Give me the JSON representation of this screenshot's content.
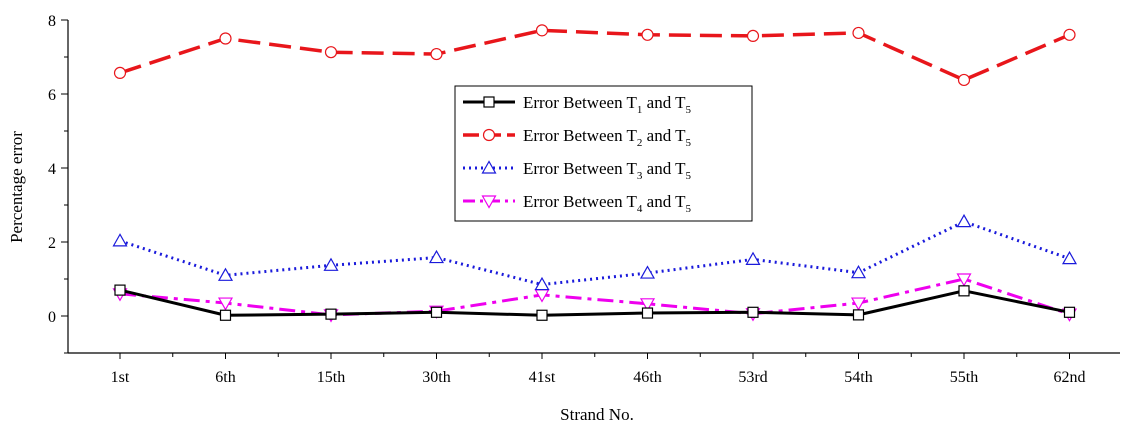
{
  "chart_data": {
    "type": "line",
    "xlabel": "Strand No.",
    "ylabel": "Percentage error",
    "categories": [
      "1st",
      "6th",
      "15th",
      "30th",
      "41st",
      "46th",
      "53rd",
      "54th",
      "55th",
      "62nd"
    ],
    "ylim": [
      -1,
      8
    ],
    "yticks": [
      0,
      2,
      4,
      6,
      8
    ],
    "grid": false,
    "legend_position": "center",
    "series": [
      {
        "name": "Error Between T1 and T5",
        "legend": {
          "prefix": "Error Between T",
          "sub1": "1",
          "mid": " and T",
          "sub2": "5"
        },
        "color": "#000000",
        "line_style": "solid",
        "marker": "square",
        "values": [
          0.7,
          0.02,
          0.05,
          0.1,
          0.02,
          0.08,
          0.1,
          0.03,
          0.68,
          0.1
        ]
      },
      {
        "name": "Error Between T2 and T5",
        "legend": {
          "prefix": "Error Between T",
          "sub1": "2",
          "mid": " and T",
          "sub2": "5"
        },
        "color": "#e8161b",
        "line_style": "dash",
        "marker": "circle",
        "values": [
          6.57,
          7.5,
          7.13,
          7.08,
          7.72,
          7.6,
          7.57,
          7.65,
          6.38,
          7.6
        ]
      },
      {
        "name": "Error Between T3 and T5",
        "legend": {
          "prefix": "Error Between T",
          "sub1": "3",
          "mid": " and T",
          "sub2": "5"
        },
        "color": "#1a1adb",
        "line_style": "dot",
        "marker": "triangle-up",
        "values": [
          2.03,
          1.1,
          1.37,
          1.58,
          0.85,
          1.16,
          1.53,
          1.17,
          2.55,
          1.55
        ]
      },
      {
        "name": "Error Between T4 and T5",
        "legend": {
          "prefix": "Error Between T",
          "sub1": "4",
          "mid": " and T",
          "sub2": "5"
        },
        "color": "#ee00ee",
        "line_style": "dash-dot",
        "marker": "triangle-down",
        "values": [
          0.6,
          0.35,
          0.03,
          0.13,
          0.57,
          0.33,
          0.06,
          0.35,
          1.0,
          0.05
        ]
      }
    ]
  }
}
